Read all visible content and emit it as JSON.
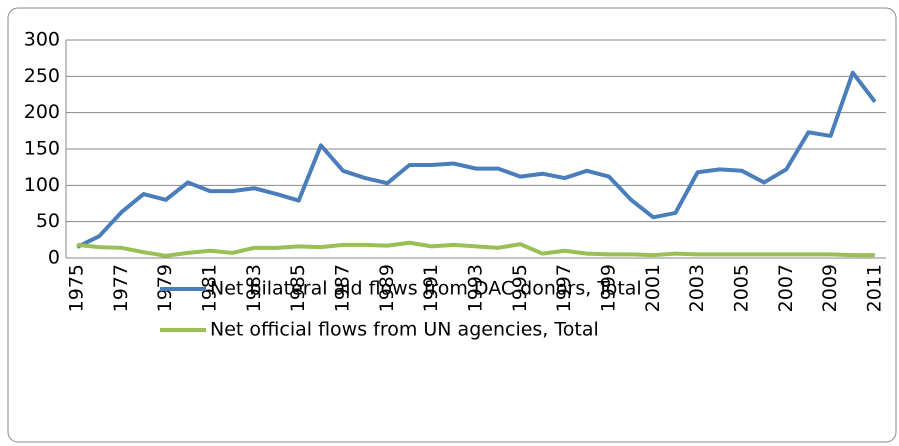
{
  "chart_data": {
    "type": "line",
    "categories": [
      "1975",
      null,
      "1977",
      null,
      "1979",
      null,
      "1981",
      null,
      "1983",
      null,
      "1985",
      null,
      "1987",
      null,
      "1989",
      null,
      "1991",
      null,
      "1993",
      null,
      "1995",
      null,
      "1997",
      null,
      "1999",
      null,
      "2001",
      null,
      "2003",
      null,
      "2005",
      null,
      "2007",
      null,
      "2009",
      null,
      "2011"
    ],
    "series": [
      {
        "name": "Net bilateral aid flows from DAC donors, Total",
        "color": "#4a7ebb",
        "values": [
          15,
          30,
          63,
          88,
          80,
          104,
          92,
          92,
          96,
          88,
          79,
          155,
          120,
          110,
          103,
          128,
          128,
          130,
          123,
          123,
          112,
          116,
          110,
          120,
          112,
          80,
          56,
          62,
          118,
          122,
          120,
          104,
          122,
          173,
          168,
          255,
          215
        ]
      },
      {
        "name": "Net official flows from UN agencies, Total",
        "color": "#98c054",
        "values": [
          18,
          15,
          14,
          8,
          3,
          7,
          10,
          7,
          14,
          14,
          16,
          15,
          18,
          18,
          17,
          21,
          16,
          18,
          16,
          14,
          19,
          6,
          10,
          6,
          5,
          5,
          4,
          6,
          5,
          5,
          5,
          5,
          5,
          5,
          5,
          4,
          4
        ]
      }
    ],
    "ylim": [
      0,
      300
    ],
    "yticks": [
      0,
      50,
      100,
      150,
      200,
      250,
      300
    ],
    "grid": true,
    "legend": "bottom"
  }
}
